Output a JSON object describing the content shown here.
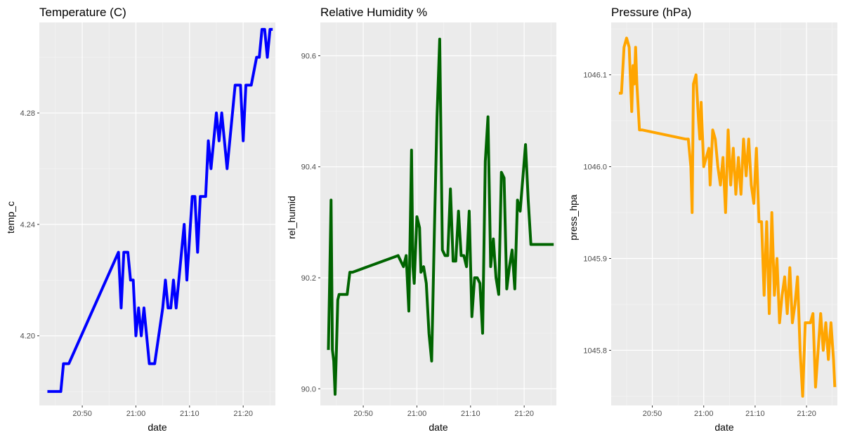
{
  "chart_data": [
    {
      "type": "line",
      "title": "Temperature (C)",
      "xlabel": "date",
      "ylabel": "temp_c",
      "color": "#0000ff",
      "xlim": [
        "20:42",
        "21:26"
      ],
      "ylim": [
        4.175,
        4.3125
      ],
      "xticks": [
        "20:50",
        "21:00",
        "21:10",
        "21:20"
      ],
      "yticks": [
        4.2,
        4.24,
        4.28
      ],
      "ytick_labels": [
        "4.20",
        "4.24",
        "4.28"
      ],
      "grid": true,
      "series": [
        {
          "x": [
            "20:43:30",
            "20:46:00",
            "20:46:30",
            "20:47:30",
            "20:56:45",
            "20:57:15",
            "20:57:45",
            "20:58:30",
            "20:59:00",
            "20:59:30",
            "21:00:00",
            "21:00:30",
            "21:01:00",
            "21:01:30",
            "21:02:00",
            "21:02:30",
            "21:03:30",
            "21:05:00",
            "21:05:30",
            "21:06:00",
            "21:06:30",
            "21:07:00",
            "21:07:30",
            "21:08:00",
            "21:09:00",
            "21:09:30",
            "21:10:30",
            "21:11:00",
            "21:11:30",
            "21:12:00",
            "21:13:00",
            "21:13:30",
            "21:14:00",
            "21:14:30",
            "21:15:00",
            "21:15:30",
            "21:16:00",
            "21:17:00",
            "21:17:30",
            "21:18:30",
            "21:19:30",
            "21:20:00",
            "21:20:30",
            "21:21:00",
            "21:21:30",
            "21:22:30",
            "21:23:00",
            "21:23:30",
            "21:24:00",
            "21:24:30",
            "21:25:00",
            "21:25:30"
          ],
          "y": [
            4.18,
            4.18,
            4.19,
            4.19,
            4.23,
            4.21,
            4.23,
            4.23,
            4.22,
            4.22,
            4.2,
            4.21,
            4.2,
            4.21,
            4.2,
            4.19,
            4.19,
            4.21,
            4.22,
            4.21,
            4.21,
            4.22,
            4.21,
            4.22,
            4.24,
            4.22,
            4.25,
            4.25,
            4.23,
            4.25,
            4.25,
            4.27,
            4.26,
            4.27,
            4.28,
            4.27,
            4.28,
            4.26,
            4.27,
            4.29,
            4.29,
            4.27,
            4.29,
            4.29,
            4.29,
            4.3,
            4.3,
            4.31,
            4.31,
            4.3,
            4.31,
            4.31
          ]
        }
      ]
    },
    {
      "type": "line",
      "title": "Relative Humidity %",
      "xlabel": "date",
      "ylabel": "rel_humid",
      "color": "#006400",
      "xlim": [
        "20:42",
        "21:26"
      ],
      "ylim": [
        89.97,
        90.66
      ],
      "xticks": [
        "20:50",
        "21:00",
        "21:10",
        "21:20"
      ],
      "yticks": [
        90.0,
        90.2,
        90.4,
        90.6
      ],
      "ytick_labels": [
        "90.0",
        "90.2",
        "90.4",
        "90.6"
      ],
      "grid": true,
      "series": [
        {
          "x": [
            "20:43:30",
            "20:43:45",
            "20:44:00",
            "20:44:15",
            "20:44:30",
            "20:44:45",
            "20:45:00",
            "20:45:15",
            "20:45:30",
            "20:46:00",
            "20:46:30",
            "20:47:00",
            "20:47:30",
            "20:48:00",
            "20:56:30",
            "20:57:30",
            "20:58:00",
            "20:58:30",
            "20:59:00",
            "20:59:15",
            "20:59:30",
            "20:59:45",
            "21:00:00",
            "21:00:30",
            "21:00:45",
            "21:01:15",
            "21:01:45",
            "21:02:15",
            "21:02:45",
            "21:03:15",
            "21:03:45",
            "21:04:15",
            "21:04:45",
            "21:05:15",
            "21:05:45",
            "21:06:15",
            "21:06:45",
            "21:07:15",
            "21:07:45",
            "21:08:15",
            "21:08:30",
            "21:08:45",
            "21:09:15",
            "21:09:45",
            "21:10:15",
            "21:10:45",
            "21:11:15",
            "21:11:45",
            "21:12:15",
            "21:12:45",
            "21:13:15",
            "21:13:45",
            "21:14:15",
            "21:14:45",
            "21:15:15",
            "21:15:45",
            "21:16:15",
            "21:16:45",
            "21:17:15",
            "21:17:45",
            "21:18:15",
            "21:18:45",
            "21:19:15",
            "21:19:45",
            "21:20:15",
            "21:20:45",
            "21:21:15",
            "21:21:45",
            "21:22:15",
            "21:22:45",
            "21:23:15",
            "21:23:45",
            "21:24:15",
            "21:24:45",
            "21:25:15",
            "21:25:30"
          ],
          "y": [
            90.07,
            90.2,
            90.34,
            90.07,
            90.05,
            89.99,
            90.07,
            90.16,
            90.17,
            90.17,
            90.17,
            90.17,
            90.21,
            90.21,
            90.24,
            90.22,
            90.24,
            90.14,
            90.43,
            90.22,
            90.19,
            90.25,
            90.31,
            90.29,
            90.21,
            90.22,
            90.19,
            90.1,
            90.05,
            90.28,
            90.49,
            90.63,
            90.25,
            90.24,
            90.24,
            90.36,
            90.23,
            90.23,
            90.32,
            90.24,
            90.24,
            90.24,
            90.22,
            90.32,
            90.13,
            90.2,
            90.2,
            90.19,
            90.1,
            90.41,
            90.49,
            90.22,
            90.27,
            90.2,
            90.17,
            90.39,
            90.38,
            90.18,
            90.22,
            90.25,
            90.18,
            90.34,
            90.32,
            90.38,
            90.44,
            90.34,
            90.26,
            90.26,
            90.26,
            90.26,
            90.26,
            90.26,
            90.26,
            90.26,
            90.26,
            90.26
          ]
        }
      ]
    },
    {
      "type": "line",
      "title": "Pressure (hPa)",
      "xlabel": "date",
      "ylabel": "press_hpa",
      "color": "#ffa500",
      "xlim": [
        "20:42",
        "21:26"
      ],
      "ylim": [
        1045.74,
        1046.157
      ],
      "xticks": [
        "20:50",
        "21:00",
        "21:10",
        "21:20"
      ],
      "yticks": [
        1045.8,
        1045.9,
        1046.0,
        1046.1
      ],
      "ytick_labels": [
        "1045.8",
        "1045.9",
        "1046.0",
        "1046.1"
      ],
      "grid": true,
      "series": [
        {
          "x": [
            "20:43:30",
            "20:44:00",
            "20:44:30",
            "20:45:00",
            "20:45:30",
            "20:46:00",
            "20:46:15",
            "20:46:30",
            "20:46:45",
            "20:47:00",
            "20:47:30",
            "20:48:00",
            "20:56:30",
            "20:57:00",
            "20:57:30",
            "20:57:45",
            "20:58:00",
            "20:58:30",
            "20:59:00",
            "20:59:15",
            "20:59:30",
            "21:00:00",
            "21:00:30",
            "21:01:00",
            "21:01:15",
            "21:01:45",
            "21:02:15",
            "21:02:45",
            "21:03:15",
            "21:03:45",
            "21:04:15",
            "21:04:45",
            "21:05:15",
            "21:05:45",
            "21:06:15",
            "21:06:45",
            "21:07:15",
            "21:07:45",
            "21:08:15",
            "21:08:45",
            "21:09:15",
            "21:09:45",
            "21:10:15",
            "21:10:45",
            "21:11:15",
            "21:11:45",
            "21:12:15",
            "21:12:45",
            "21:13:15",
            "21:13:45",
            "21:14:15",
            "21:14:45",
            "21:15:15",
            "21:15:45",
            "21:16:15",
            "21:16:45",
            "21:17:15",
            "21:17:45",
            "21:18:15",
            "21:18:45",
            "21:19:15",
            "21:19:45",
            "21:20:15",
            "21:20:45",
            "21:21:15",
            "21:21:45",
            "21:22:15",
            "21:22:45",
            "21:23:15",
            "21:23:45",
            "21:24:15",
            "21:24:45",
            "21:25:15",
            "21:25:30"
          ],
          "y": [
            1046.08,
            1046.08,
            1046.13,
            1046.14,
            1046.13,
            1046.06,
            1046.11,
            1046.09,
            1046.13,
            1046.09,
            1046.04,
            1046.04,
            1046.03,
            1046.03,
            1046.0,
            1045.95,
            1046.09,
            1046.1,
            1046.05,
            1046.03,
            1046.07,
            1046.0,
            1046.01,
            1046.02,
            1045.98,
            1046.04,
            1046.03,
            1046.0,
            1045.98,
            1046.01,
            1045.95,
            1046.04,
            1045.98,
            1046.02,
            1045.97,
            1046.01,
            1045.97,
            1046.03,
            1045.99,
            1046.03,
            1045.98,
            1045.96,
            1046.02,
            1045.94,
            1045.94,
            1045.86,
            1045.94,
            1045.84,
            1045.95,
            1045.86,
            1045.9,
            1045.83,
            1045.86,
            1045.88,
            1045.84,
            1045.89,
            1045.83,
            1045.85,
            1045.88,
            1045.8,
            1045.75,
            1045.83,
            1045.83,
            1045.83,
            1045.84,
            1045.76,
            1045.8,
            1045.84,
            1045.8,
            1045.83,
            1045.79,
            1045.83,
            1045.79,
            1045.76
          ]
        }
      ]
    }
  ]
}
